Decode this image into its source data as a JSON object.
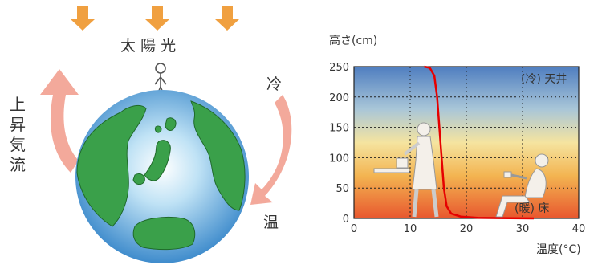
{
  "left_diagram": {
    "sunlight_label": "太 陽 光",
    "rising_air_label": [
      "上",
      "昇",
      "気",
      "流"
    ],
    "cold_label": "冷",
    "warm_label": "温",
    "colors": {
      "arrow_sun": "#f0a040",
      "arrow_air": "#f2a090",
      "ocean": "#3a8fd0",
      "land": "#3aa04a"
    }
  },
  "chart_data": {
    "type": "line",
    "ylabel": "高さ(cm)",
    "xlabel": "温度(°C)",
    "xlim": [
      0,
      40
    ],
    "ylim": [
      0,
      250
    ],
    "x_ticks": [
      "0",
      "10",
      "20",
      "30",
      "40"
    ],
    "y_ticks": [
      "0",
      "50",
      "100",
      "150",
      "200",
      "250"
    ],
    "grid": true,
    "series": [
      {
        "name": "",
        "color": "#e60000",
        "points": [
          [
            12.5,
            250
          ],
          [
            13.5,
            248
          ],
          [
            14.3,
            235
          ],
          [
            14.8,
            200
          ],
          [
            15.2,
            150
          ],
          [
            15.6,
            100
          ],
          [
            16.0,
            50
          ],
          [
            16.5,
            20
          ],
          [
            17.3,
            8
          ],
          [
            19,
            3
          ],
          [
            22,
            1
          ],
          [
            26,
            0.5
          ],
          [
            32,
            0
          ]
        ]
      }
    ],
    "annotations": {
      "ceiling": "(冷) 天井",
      "floor": "(暖)  床"
    }
  }
}
